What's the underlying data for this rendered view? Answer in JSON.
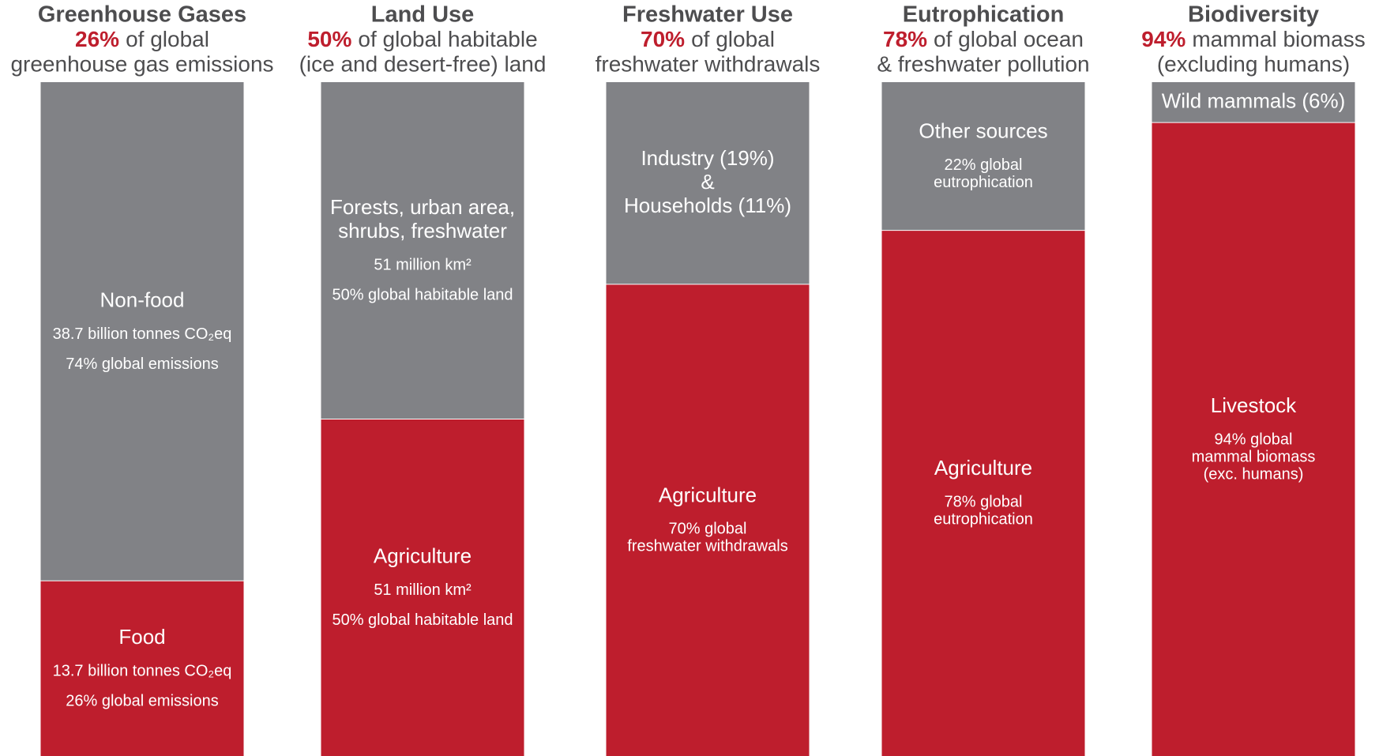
{
  "chart_data": [
    {
      "type": "bar",
      "title": "Greenhouse Gases",
      "highlight": "26%",
      "subtitle": [
        "of global",
        "greenhouse gas emissions"
      ],
      "ylim": [
        0,
        100
      ],
      "segments": [
        {
          "name": [
            "Food"
          ],
          "value": 26,
          "color": "#be1e2d",
          "details": [
            [
              "13.7 billion tonnes CO₂eq"
            ],
            [
              "26% global emissions"
            ]
          ]
        },
        {
          "name": [
            "Non-food"
          ],
          "value": 74,
          "color": "#818286",
          "details": [
            [
              "38.7 billion tonnes CO₂eq"
            ],
            [
              "74% global emissions"
            ]
          ]
        }
      ]
    },
    {
      "type": "bar",
      "title": "Land Use",
      "highlight": "50%",
      "subtitle": [
        "of global habitable",
        "(ice and desert-free) land"
      ],
      "ylim": [
        0,
        100
      ],
      "segments": [
        {
          "name": [
            "Agriculture"
          ],
          "value": 50,
          "color": "#be1e2d",
          "details": [
            [
              "51 million km²"
            ],
            [
              "50% global habitable land"
            ]
          ]
        },
        {
          "name": [
            "Forests, urban area,",
            "shrubs, freshwater"
          ],
          "value": 50,
          "color": "#818286",
          "details": [
            [
              "51 million km²"
            ],
            [
              "50% global habitable land"
            ]
          ]
        }
      ]
    },
    {
      "type": "bar",
      "title": "Freshwater Use",
      "highlight": "70%",
      "subtitle": [
        "of global",
        "freshwater withdrawals"
      ],
      "ylim": [
        0,
        100
      ],
      "segments": [
        {
          "name": [
            "Agriculture"
          ],
          "value": 70,
          "color": "#be1e2d",
          "details": [
            [
              "70% global",
              "freshwater withdrawals"
            ]
          ]
        },
        {
          "name": [
            "Industry (19%)",
            "&",
            "Households (11%)"
          ],
          "value": 30,
          "color": "#818286",
          "details": []
        }
      ]
    },
    {
      "type": "bar",
      "title": "Eutrophication",
      "highlight": "78%",
      "subtitle": [
        "of global ocean",
        "& freshwater pollution"
      ],
      "ylim": [
        0,
        100
      ],
      "segments": [
        {
          "name": [
            "Agriculture"
          ],
          "value": 78,
          "color": "#be1e2d",
          "details": [
            [
              "78% global",
              "eutrophication"
            ]
          ]
        },
        {
          "name": [
            "Other sources"
          ],
          "value": 22,
          "color": "#818286",
          "details": [
            [
              "22% global",
              "eutrophication"
            ]
          ]
        }
      ]
    },
    {
      "type": "bar",
      "title": "Biodiversity",
      "highlight": "94%",
      "subtitle": [
        "mammal biomass",
        "(excluding humans)"
      ],
      "ylim": [
        0,
        100
      ],
      "segments": [
        {
          "name": [
            "Livestock"
          ],
          "value": 94,
          "color": "#be1e2d",
          "details": [
            [
              "94% global",
              "mammal biomass",
              "(exc. humans)"
            ]
          ]
        },
        {
          "name": [
            "Wild mammals (6%)"
          ],
          "value": 6,
          "color": "#818286",
          "details": []
        }
      ]
    }
  ]
}
